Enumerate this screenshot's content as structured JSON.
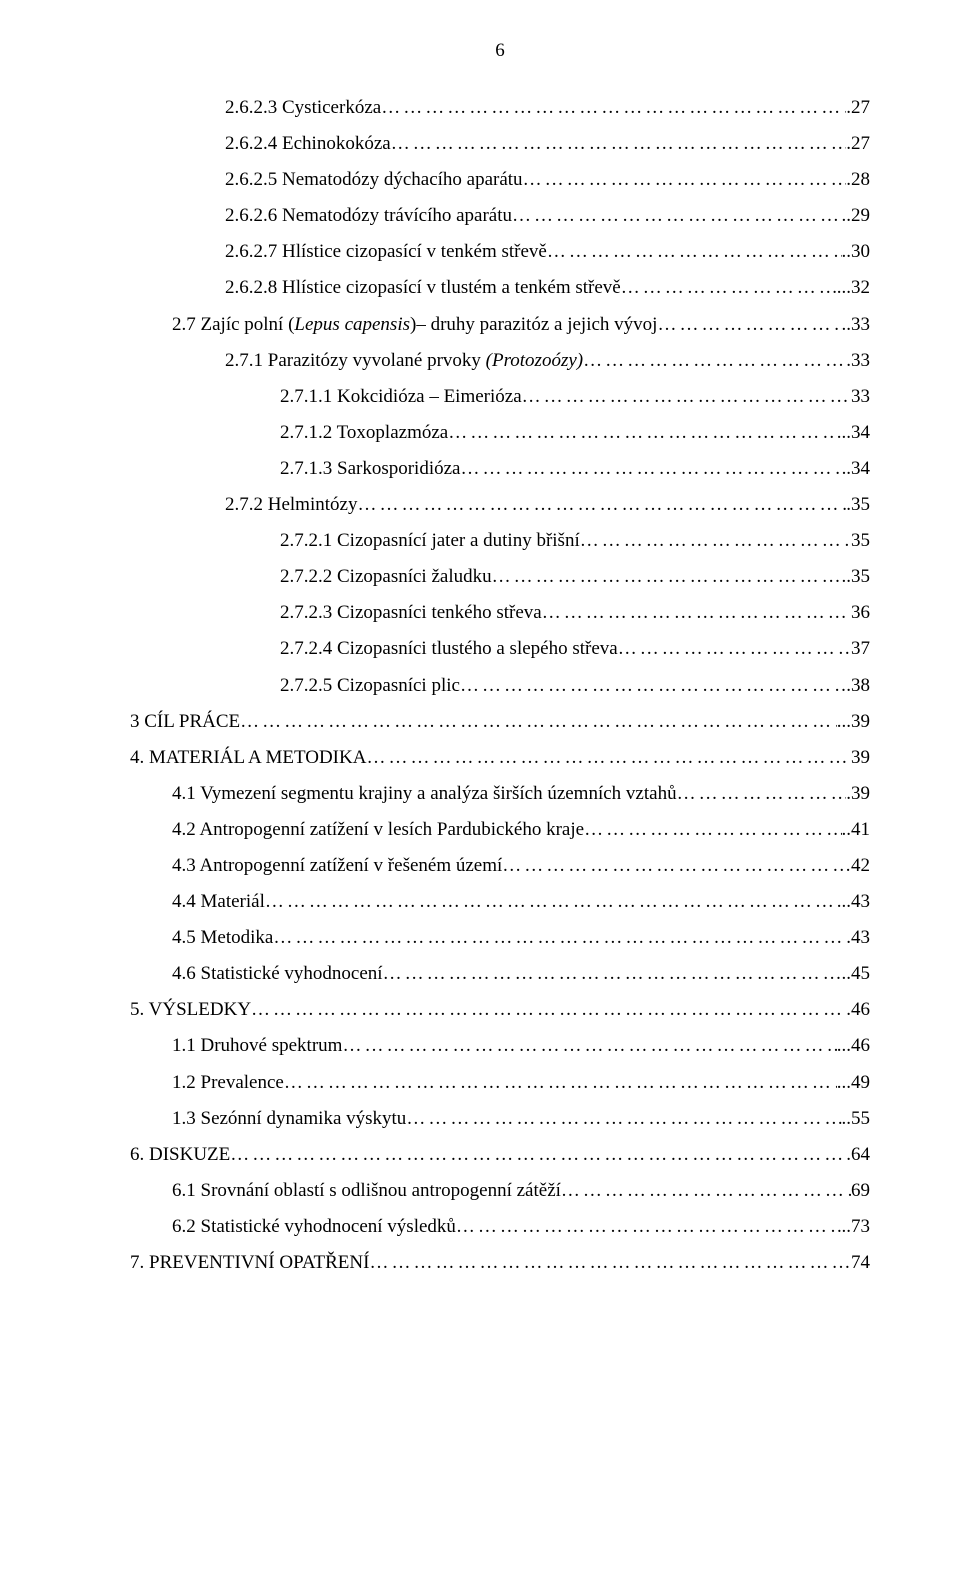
{
  "page_number": "6",
  "dots": "…………………………………………………………………………………………………………………",
  "toc": [
    {
      "indent": 2,
      "label_parts": [
        {
          "t": "2.6.2.3 Cysticerkóza"
        }
      ],
      "page": ".27"
    },
    {
      "indent": 2,
      "label_parts": [
        {
          "t": "2.6.2.4 Echinokokóza"
        }
      ],
      "page": ".27"
    },
    {
      "indent": 2,
      "label_parts": [
        {
          "t": "2.6.2.5 Nematodózy dýchacího aparátu"
        }
      ],
      "page": ".28"
    },
    {
      "indent": 2,
      "label_parts": [
        {
          "t": "2.6.2.6 Nematodózy trávícího aparátu"
        }
      ],
      "page": "..29"
    },
    {
      "indent": 2,
      "label_parts": [
        {
          "t": "2.6.2.7 Hlístice cizopasící v tenkém střevě"
        }
      ],
      "page": "..30"
    },
    {
      "indent": 2,
      "label_parts": [
        {
          "t": "2.6.2.8 Hlístice cizopasící v tlustém a tenkém střevě"
        }
      ],
      "page": "...32"
    },
    {
      "indent": 1,
      "label_parts": [
        {
          "t": "2.7 Zajíc polní ("
        },
        {
          "t": "Lepus capensis",
          "italic": true
        },
        {
          "t": ")– druhy parazitóz a jejich vývoj"
        }
      ],
      "page": "..33"
    },
    {
      "indent": 2,
      "label_parts": [
        {
          "t": "2.7.1 Parazitózy vyvolané prvoky "
        },
        {
          "t": "(Protozoózy)",
          "italic": true
        }
      ],
      "page": ".33"
    },
    {
      "indent": 3,
      "label_parts": [
        {
          "t": "2.7.1.1 Kokcidióza – Eimerióza"
        }
      ],
      "page": "33"
    },
    {
      "indent": 3,
      "label_parts": [
        {
          "t": "2.7.1.2 Toxoplazmóza"
        }
      ],
      "page": "...34"
    },
    {
      "indent": 3,
      "label_parts": [
        {
          "t": "2.7.1.3 Sarkosporidióza"
        }
      ],
      "page": ".34"
    },
    {
      "indent": 2,
      "label_parts": [
        {
          "t": "2.7.2 Helmintózy"
        }
      ],
      "page": ".35"
    },
    {
      "indent": 3,
      "label_parts": [
        {
          "t": "2.7.2.1 Cizopasnící jater a dutiny břišní"
        }
      ],
      "page": "35"
    },
    {
      "indent": 3,
      "label_parts": [
        {
          "t": "2.7.2.2 Cizopasníci žaludku"
        }
      ],
      "page": "..35"
    },
    {
      "indent": 3,
      "label_parts": [
        {
          "t": "2.7.2.3 Cizopasníci tenkého střeva"
        }
      ],
      "page": "36"
    },
    {
      "indent": 3,
      "label_parts": [
        {
          "t": "2.7.2.4 Cizopasníci tlustého a slepého střeva"
        }
      ],
      "page": "37"
    },
    {
      "indent": 3,
      "label_parts": [
        {
          "t": "2.7.2.5 Cizopasníci plic"
        }
      ],
      "page": ".38"
    },
    {
      "indent": 0,
      "label_parts": [
        {
          "t": "3 CÍL PRÁCE"
        }
      ],
      "page": "...39"
    },
    {
      "indent": 0,
      "label_parts": [
        {
          "t": "4. MATERIÁL A METODIKA"
        }
      ],
      "page": "39"
    },
    {
      "indent": 1,
      "label_parts": [
        {
          "t": "4.1 Vymezení segmentu krajiny a analýza širších územních vztahů"
        }
      ],
      "page": ".39"
    },
    {
      "indent": 1,
      "label_parts": [
        {
          "t": "4.2 Antropogenní  zatížení v lesích Pardubického kraje"
        }
      ],
      "page": "..41"
    },
    {
      "indent": 1,
      "label_parts": [
        {
          "t": "4.3 Antropogenní  zatížení v řešeném území"
        }
      ],
      "page": "42"
    },
    {
      "indent": 1,
      "label_parts": [
        {
          "t": "4.4 Materiál"
        }
      ],
      "page": "...43"
    },
    {
      "indent": 1,
      "label_parts": [
        {
          "t": "4.5 Metodika"
        }
      ],
      "page": ".43"
    },
    {
      "indent": 1,
      "label_parts": [
        {
          "t": "4.6 Statistické vyhodnocení"
        }
      ],
      "page": "..45"
    },
    {
      "indent": 0,
      "label_parts": [
        {
          "t": "5. VÝSLEDKY"
        }
      ],
      "page": ".46"
    },
    {
      "indent": 1,
      "label_parts": [
        {
          "t": "1.1 Druhové spektrum"
        }
      ],
      "page": "...46"
    },
    {
      "indent": 1,
      "label_parts": [
        {
          "t": "1.2 Prevalence"
        }
      ],
      "page": "...49"
    },
    {
      "indent": 1,
      "label_parts": [
        {
          "t": "1.3 Sezónní dynamika výskytu"
        }
      ],
      "page": "..55"
    },
    {
      "indent": 0,
      "label_parts": [
        {
          "t": "6. DISKUZE"
        }
      ],
      "page": ".64"
    },
    {
      "indent": 1,
      "label_parts": [
        {
          "t": "6.1 Srovnání oblastí s odlišnou antropogenní zátěží"
        }
      ],
      "page": "69"
    },
    {
      "indent": 1,
      "label_parts": [
        {
          "t": "6.2 Statistické vyhodnocení výsledků"
        }
      ],
      "page": "..73"
    },
    {
      "indent": 0,
      "label_parts": [
        {
          "t": "7. PREVENTIVNÍ OPATŘENÍ"
        }
      ],
      "page": "74"
    }
  ]
}
